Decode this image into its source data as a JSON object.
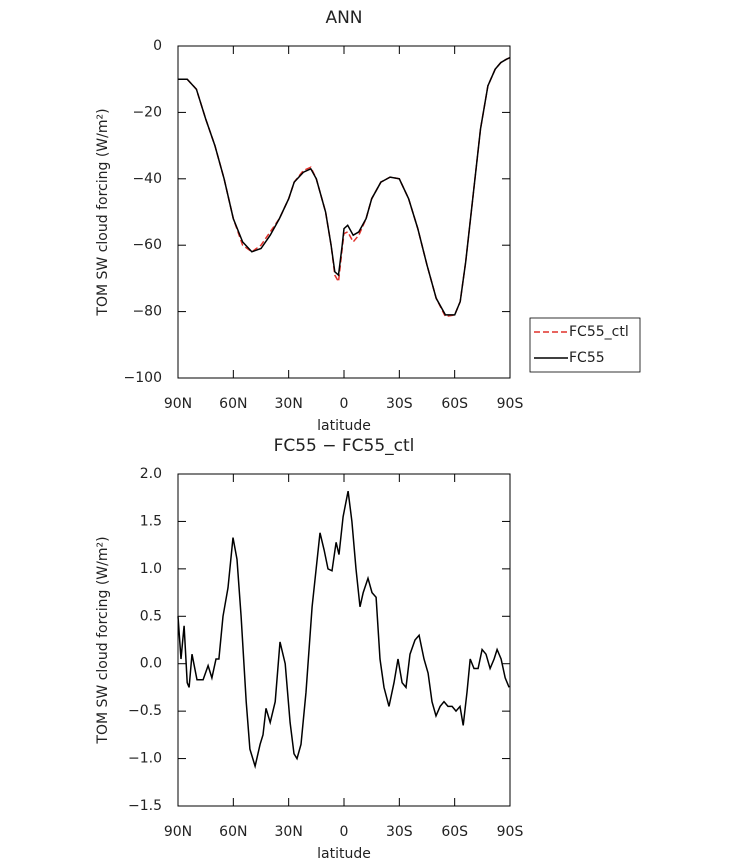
{
  "chart_data": [
    {
      "type": "line",
      "title": "ANN",
      "x_label": "latitude",
      "y_label": "TOM SW cloud forcing (W/m²)",
      "x": [
        90,
        85,
        80,
        75,
        70,
        65,
        60,
        55,
        50,
        45,
        40,
        35,
        30,
        27,
        22,
        18,
        15,
        10,
        7,
        5,
        3,
        1,
        0,
        -2,
        -5,
        -8,
        -12,
        -15,
        -20,
        -25,
        -30,
        -35,
        -40,
        -45,
        -50,
        -55,
        -60,
        -63,
        -66,
        -70,
        -74,
        -78,
        -82,
        -85,
        -88,
        -90
      ],
      "series": [
        {
          "name": "FC55_ctl",
          "color": "#e0302a",
          "dash": true,
          "values": [
            -10,
            -10,
            -13,
            -22,
            -30,
            -40,
            -52,
            -60,
            -62,
            -60,
            -56,
            -52,
            -46,
            -41,
            -37.5,
            -36.5,
            -40,
            -50,
            -60,
            -69,
            -71,
            -61,
            -56.5,
            -56,
            -59,
            -57,
            -52,
            -46,
            -41,
            -39.5,
            -40,
            -46,
            -55,
            -66,
            -76,
            -81.5,
            -81,
            -77,
            -65,
            -45,
            -25,
            -12,
            -7,
            -5,
            -4,
            -3.5
          ]
        },
        {
          "name": "FC55",
          "color": "#000000",
          "dash": false,
          "values": [
            -10,
            -10,
            -13,
            -22,
            -30,
            -40,
            -52,
            -59,
            -62,
            -61,
            -57,
            -52,
            -46,
            -41,
            -38,
            -37,
            -40,
            -50,
            -60,
            -68,
            -69,
            -60,
            -55,
            -54,
            -57,
            -56,
            -52,
            -46,
            -41,
            -39.5,
            -40,
            -46,
            -55,
            -66,
            -76,
            -81,
            -81,
            -77,
            -65,
            -45,
            -25,
            -12,
            -7,
            -5,
            -4,
            -3.5
          ]
        }
      ],
      "xlim": [
        90,
        -90
      ],
      "xticks": [
        {
          "value": 90,
          "label": "90N"
        },
        {
          "value": 60,
          "label": "60N"
        },
        {
          "value": 30,
          "label": "30N"
        },
        0,
        {
          "value": -30,
          "label": "30S"
        },
        {
          "value": -60,
          "label": "60S"
        },
        {
          "value": -90,
          "label": "90S"
        }
      ],
      "ylim": [
        -100,
        0
      ],
      "yticks": [
        {
          "value": -100,
          "label": "−100"
        },
        {
          "value": -80,
          "label": "−80"
        },
        {
          "value": -60,
          "label": "−60"
        },
        {
          "value": -40,
          "label": "−40"
        },
        {
          "value": -20,
          "label": "−20"
        },
        0
      ],
      "legend": "outside right"
    },
    {
      "type": "line",
      "title": "FC55 − FC55_ctl",
      "x_label": "latitude",
      "y_label": "TOM SW cloud forcing (W/m²)",
      "x": [
        90,
        88.4,
        86.7,
        85,
        84,
        82.4,
        79.7,
        76.4,
        73.7,
        71.6,
        69.4,
        67.8,
        65.6,
        62.9,
        60.2,
        58,
        55.8,
        53,
        51,
        48.2,
        45.5,
        43.9,
        42.3,
        40,
        37.3,
        34.7,
        31.9,
        29.2,
        27.1,
        25.5,
        23.3,
        20.6,
        17.3,
        13,
        10.8,
        8.7,
        6.5,
        4.3,
        2.7,
        0.5,
        -2.2,
        -4.3,
        -6.5,
        -8.7,
        -10.4,
        -13,
        -15.2,
        -17.4,
        -19.5,
        -21.7,
        -24.4,
        -27.1,
        -29.3,
        -31.5,
        -33.6,
        -35.8,
        -38.5,
        -40.7,
        -43.4,
        -45.6,
        -47.7,
        -49.9,
        -52.1,
        -54.2,
        -56.4,
        -58.6,
        -60.7,
        -62.9,
        -64.6,
        -66.7,
        -68.4,
        -70.5,
        -72.7,
        -74.9,
        -77,
        -79.2,
        -81.4,
        -83,
        -85.2,
        -87.4,
        -89.5
      ],
      "values": [
        0.5,
        0.05,
        0.4,
        -0.2,
        -0.25,
        0.1,
        -0.17,
        -0.17,
        -0.02,
        -0.15,
        0.05,
        0.05,
        0.5,
        0.8,
        1.33,
        1.1,
        0.5,
        -0.4,
        -0.9,
        -1.08,
        -0.85,
        -0.75,
        -0.47,
        -0.62,
        -0.4,
        0.23,
        0,
        -0.62,
        -0.95,
        -1,
        -0.85,
        -0.3,
        0.6,
        1.38,
        1.2,
        1,
        0.98,
        1.28,
        1.15,
        1.55,
        1.82,
        1.5,
        1,
        0.6,
        0.75,
        0.9,
        0.75,
        0.7,
        0.05,
        -0.25,
        -0.45,
        -0.2,
        0.05,
        -0.2,
        -0.25,
        0.1,
        0.25,
        0.3,
        0.05,
        -0.1,
        -0.4,
        -0.55,
        -0.45,
        -0.4,
        -0.45,
        -0.45,
        -0.5,
        -0.45,
        -0.65,
        -0.3,
        0.05,
        -0.05,
        -0.05,
        0.15,
        0.1,
        -0.05,
        0.05,
        0.15,
        0.05,
        -0.15,
        -0.25
      ],
      "color": "#000000",
      "xlim": [
        90,
        -90
      ],
      "xticks": [
        {
          "value": 90,
          "label": "90N"
        },
        {
          "value": 60,
          "label": "60N"
        },
        {
          "value": 30,
          "label": "30N"
        },
        0,
        {
          "value": -30,
          "label": "30S"
        },
        {
          "value": -60,
          "label": "60S"
        },
        {
          "value": -90,
          "label": "90S"
        }
      ],
      "ylim": [
        -1.5,
        2
      ],
      "yticks": [
        {
          "value": -1.5,
          "label": "−1.5"
        },
        {
          "value": -1,
          "label": "−1.0"
        },
        {
          "value": -0.5,
          "label": "−0.5"
        },
        {
          "value": 0,
          "label": "0.0"
        },
        0.5,
        {
          "value": 1,
          "label": "1.0"
        },
        1.5,
        {
          "value": 2,
          "label": "2.0"
        }
      ]
    }
  ]
}
